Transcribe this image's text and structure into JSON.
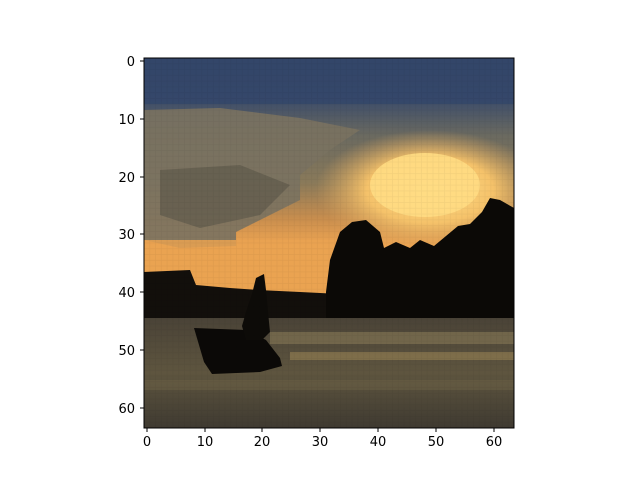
{
  "figure": {
    "kind": "matplotlib-imshow",
    "image_grid": {
      "columns": 64,
      "rows": 64
    },
    "scene": "silhouette of a person standing in a small boat on water at sunset, trees on the right shore, cloudy sky",
    "colors": {
      "sky_top": "#38496a",
      "cloud_gray": "#7c735d",
      "sun_glow": "#ffd57a",
      "horizon_orange": "#eea552",
      "silhouette": "#0c0a07",
      "water": "#5a513e",
      "axes_frame": "#000000"
    }
  },
  "axes": {
    "x_ticks": [
      "0",
      "10",
      "20",
      "30",
      "40",
      "50",
      "60"
    ],
    "y_ticks": [
      "0",
      "10",
      "20",
      "30",
      "40",
      "50",
      "60"
    ]
  }
}
